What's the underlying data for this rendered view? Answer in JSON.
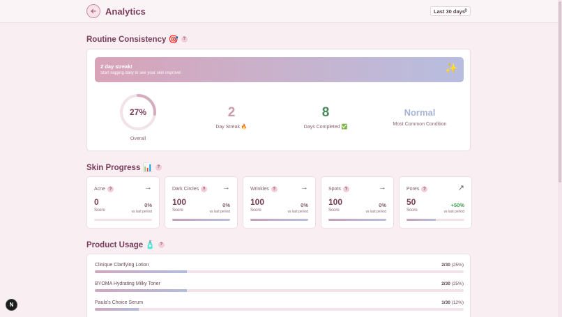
{
  "header": {
    "title": "Analytics",
    "range": "Last 30 days"
  },
  "sections": {
    "consistency": "Routine Consistency 🎯",
    "progress": "Skin Progress 📊",
    "usage": "Product Usage 🧴",
    "help": "?"
  },
  "streak": {
    "title": "2 day streak!",
    "subtitle": "Start logging daily to see your skin improve!",
    "icon": "✨"
  },
  "stats": {
    "overall_value": "27%",
    "overall_fraction": 0.27,
    "overall_label": "Overall",
    "day_streak_value": "2",
    "day_streak_label": "Day Streak 🔥",
    "days_completed_value": "8",
    "days_completed_label": "Days Completed ✅",
    "condition_value": "Normal",
    "condition_label": "Most Common Condition"
  },
  "skin_progress": [
    {
      "name": "Acne",
      "trend": "→",
      "score": "0",
      "score_label": "Score",
      "change": "0%",
      "vs": "vs last period",
      "level": 0.0
    },
    {
      "name": "Dark Circles",
      "trend": "→",
      "score": "100",
      "score_label": "Score",
      "change": "0%",
      "vs": "vs last period",
      "level": 1.0
    },
    {
      "name": "Wrinkles",
      "trend": "→",
      "score": "100",
      "score_label": "Score",
      "change": "0%",
      "vs": "vs last period",
      "level": 1.0
    },
    {
      "name": "Spots",
      "trend": "→",
      "score": "100",
      "score_label": "Score",
      "change": "0%",
      "vs": "vs last period",
      "level": 1.0
    },
    {
      "name": "Pores",
      "trend": "↗",
      "score": "50",
      "score_label": "Score",
      "change": "+50%",
      "vs": "vs last period",
      "level": 0.5
    }
  ],
  "products": [
    {
      "name": "Clinique Clarifying Lotion",
      "count": "2/30",
      "pct": "(25%)",
      "fraction": 0.25
    },
    {
      "name": "BYOMA Hydrating Milky Toner",
      "count": "2/30",
      "pct": "(25%)",
      "fraction": 0.25
    },
    {
      "name": "Paula's Choice Serum",
      "count": "1/30",
      "pct": "(12%)",
      "fraction": 0.12
    }
  ],
  "badge": "N",
  "colors": {
    "accent": "#7a3d58",
    "green": "#4a8a5a",
    "positive": "#3a9a4a",
    "muted_blue": "#a8b4d4"
  }
}
